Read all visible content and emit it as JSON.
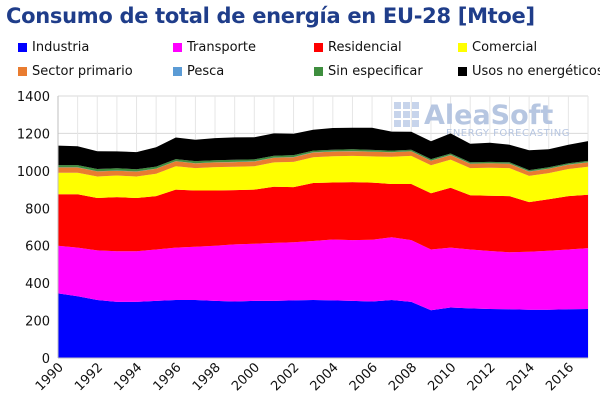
{
  "title": "Consumo de total de energía en EU-28 [Mtoe]",
  "logo": {
    "name": "AleaSoft",
    "tagline": "ENERGY FORECASTING"
  },
  "chart_data": {
    "type": "area",
    "stacked": true,
    "title": "Consumo de total de energía en EU-28 [Mtoe]",
    "xlabel": "",
    "ylabel": "",
    "ylim": [
      0,
      1400
    ],
    "y_ticks": [
      0,
      200,
      400,
      600,
      800,
      1000,
      1200,
      1400
    ],
    "x_tick_labels": [
      "1990",
      "1992",
      "1994",
      "1996",
      "1998",
      "2000",
      "2002",
      "2004",
      "2006",
      "2008",
      "2010",
      "2012",
      "2014",
      "2016"
    ],
    "grid": true,
    "legend_position": "top",
    "x": [
      1990,
      1991,
      1992,
      1993,
      1994,
      1995,
      1996,
      1997,
      1998,
      1999,
      2000,
      2001,
      2002,
      2003,
      2004,
      2005,
      2006,
      2007,
      2008,
      2009,
      2010,
      2011,
      2012,
      2013,
      2014,
      2015,
      2016,
      2017
    ],
    "series": [
      {
        "name": "Industria",
        "color": "#0000ff",
        "values": [
          345,
          330,
          310,
          300,
          300,
          305,
          310,
          310,
          305,
          302,
          305,
          305,
          308,
          310,
          308,
          305,
          302,
          310,
          300,
          255,
          270,
          265,
          262,
          260,
          258,
          258,
          260,
          262
        ]
      },
      {
        "name": "Transporte",
        "color": "#ff00ff",
        "values": [
          255,
          260,
          265,
          270,
          270,
          275,
          280,
          285,
          295,
          305,
          305,
          310,
          310,
          315,
          325,
          325,
          330,
          335,
          330,
          325,
          320,
          315,
          310,
          305,
          310,
          315,
          320,
          325
        ]
      },
      {
        "name": "Residencial",
        "color": "#ff0000",
        "values": [
          275,
          285,
          280,
          290,
          285,
          285,
          310,
          300,
          295,
          290,
          290,
          300,
          295,
          310,
          305,
          310,
          305,
          285,
          300,
          300,
          320,
          290,
          295,
          300,
          265,
          275,
          285,
          285
        ]
      },
      {
        "name": "Comercial",
        "color": "#ffff00",
        "values": [
          115,
          115,
          115,
          115,
          115,
          120,
          125,
          120,
          125,
          125,
          125,
          130,
          135,
          138,
          140,
          140,
          140,
          145,
          150,
          150,
          150,
          145,
          150,
          150,
          140,
          140,
          145,
          150
        ]
      },
      {
        "name": "Sector primario",
        "color": "#e97c30",
        "values": [
          28,
          28,
          27,
          26,
          26,
          26,
          26,
          25,
          25,
          25,
          25,
          25,
          25,
          25,
          25,
          25,
          25,
          24,
          24,
          24,
          24,
          23,
          23,
          23,
          23,
          23,
          23,
          23
        ]
      },
      {
        "name": "Pesca",
        "color": "#5b9bd5",
        "values": [
          1,
          1,
          1,
          1,
          1,
          1,
          1,
          1,
          1,
          1,
          1,
          1,
          1,
          1,
          1,
          1,
          1,
          1,
          1,
          1,
          1,
          1,
          1,
          1,
          1,
          1,
          1,
          1
        ]
      },
      {
        "name": "Sin especificar",
        "color": "#3e8e3e",
        "values": [
          12,
          12,
          12,
          12,
          12,
          11,
          11,
          11,
          11,
          11,
          10,
          10,
          10,
          9,
          9,
          9,
          9,
          8,
          8,
          8,
          8,
          7,
          7,
          7,
          7,
          7,
          7,
          7
        ]
      },
      {
        "name": "Usos no energéticos",
        "color": "#000000",
        "values": [
          104,
          100,
          95,
          90,
          91,
          103,
          115,
          114,
          118,
          120,
          119,
          119,
          114,
          112,
          116,
          115,
          118,
          102,
          96,
          95,
          107,
          99,
          102,
          94,
          106,
          96,
          99,
          106
        ]
      }
    ]
  }
}
